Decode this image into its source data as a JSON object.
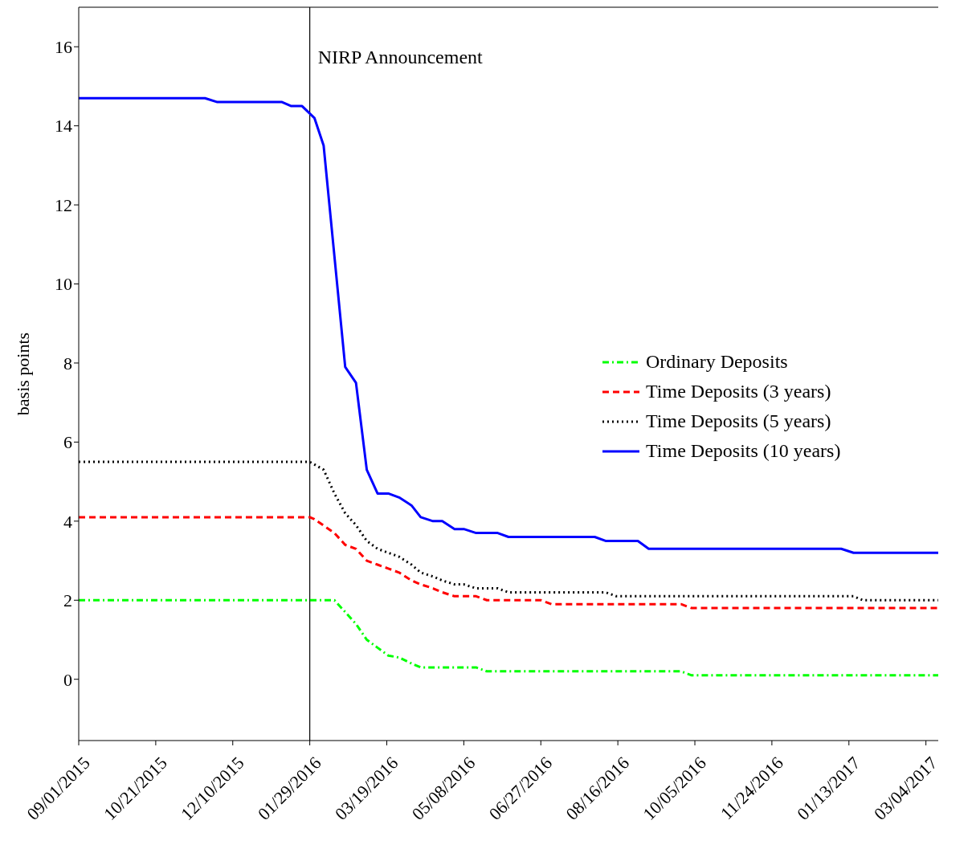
{
  "chart_data": {
    "type": "line",
    "ylabel": "basis points",
    "ylim": [
      -1.55,
      17
    ],
    "yticks": [
      0,
      2,
      4,
      6,
      8,
      10,
      12,
      14,
      16
    ],
    "xlim": [
      "2015-09-01",
      "2017-03-12"
    ],
    "xticks": [
      {
        "value": "2015-09-01",
        "label": "09/01/2015"
      },
      {
        "value": "2015-10-21",
        "label": "10/21/2015"
      },
      {
        "value": "2015-12-10",
        "label": "12/10/2015"
      },
      {
        "value": "2016-01-29",
        "label": "01/29/2016"
      },
      {
        "value": "2016-03-19",
        "label": "03/19/2016"
      },
      {
        "value": "2016-05-08",
        "label": "05/08/2016"
      },
      {
        "value": "2016-06-27",
        "label": "06/27/2016"
      },
      {
        "value": "2016-08-16",
        "label": "08/16/2016"
      },
      {
        "value": "2016-10-05",
        "label": "10/05/2016"
      },
      {
        "value": "2016-11-24",
        "label": "11/24/2016"
      },
      {
        "value": "2017-01-13",
        "label": "01/13/2017"
      },
      {
        "value": "2017-03-04",
        "label": "03/04/2017"
      }
    ],
    "legend": "right",
    "marker": "none",
    "ref_lines": [
      {
        "axis": "x",
        "value": "2016-01-29",
        "label": "NIRP Announcement",
        "color": "#000000"
      }
    ],
    "series": [
      {
        "name": "Ordinary Deposits",
        "color": "#00ff00",
        "line_style": "dashdot",
        "x": [
          "2015-09-01",
          "2016-02-14",
          "2016-02-21",
          "2016-02-28",
          "2016-03-06",
          "2016-03-13",
          "2016-03-20",
          "2016-03-27",
          "2016-04-04",
          "2016-04-10",
          "2016-05-16",
          "2016-05-23",
          "2016-09-26",
          "2016-10-03",
          "2017-03-12"
        ],
        "values": [
          2.0,
          2.0,
          1.7,
          1.4,
          1.0,
          0.8,
          0.6,
          0.55,
          0.4,
          0.3,
          0.3,
          0.2,
          0.2,
          0.1,
          0.1
        ]
      },
      {
        "name": "Time Deposits (3 years)",
        "color": "#ff0000",
        "line_style": "dashed",
        "x": [
          "2015-09-01",
          "2016-01-29",
          "2016-02-01",
          "2016-02-14",
          "2016-02-21",
          "2016-02-28",
          "2016-03-06",
          "2016-03-13",
          "2016-03-20",
          "2016-03-27",
          "2016-04-04",
          "2016-04-10",
          "2016-04-18",
          "2016-04-24",
          "2016-05-02",
          "2016-05-16",
          "2016-05-23",
          "2016-06-27",
          "2016-07-04",
          "2016-09-26",
          "2016-10-03",
          "2017-03-12"
        ],
        "values": [
          4.1,
          4.1,
          4.05,
          3.7,
          3.4,
          3.3,
          3.0,
          2.9,
          2.8,
          2.7,
          2.5,
          2.4,
          2.3,
          2.2,
          2.1,
          2.1,
          2.0,
          2.0,
          1.9,
          1.9,
          1.8,
          1.8
        ]
      },
      {
        "name": "Time Deposits (5 years)",
        "color": "#000000",
        "line_style": "dotted",
        "x": [
          "2015-09-01",
          "2016-01-29",
          "2016-02-07",
          "2016-02-14",
          "2016-02-21",
          "2016-02-28",
          "2016-03-06",
          "2016-03-13",
          "2016-03-20",
          "2016-03-27",
          "2016-04-04",
          "2016-04-10",
          "2016-04-18",
          "2016-04-24",
          "2016-05-02",
          "2016-05-08",
          "2016-05-16",
          "2016-05-30",
          "2016-06-06",
          "2016-08-08",
          "2016-08-15",
          "2017-01-16",
          "2017-01-22",
          "2017-03-12"
        ],
        "values": [
          5.5,
          5.5,
          5.3,
          4.7,
          4.2,
          3.9,
          3.5,
          3.3,
          3.2,
          3.1,
          2.9,
          2.7,
          2.6,
          2.5,
          2.4,
          2.4,
          2.3,
          2.3,
          2.2,
          2.2,
          2.1,
          2.1,
          2.0,
          2.0
        ]
      },
      {
        "name": "Time Deposits (10 years)",
        "color": "#0000ff",
        "line_style": "solid",
        "x": [
          "2015-09-01",
          "2015-11-22",
          "2015-11-30",
          "2016-01-11",
          "2016-01-17",
          "2016-01-24",
          "2016-02-01",
          "2016-02-07",
          "2016-02-21",
          "2016-02-28",
          "2016-03-06",
          "2016-03-13",
          "2016-03-20",
          "2016-03-27",
          "2016-04-04",
          "2016-04-10",
          "2016-04-18",
          "2016-04-24",
          "2016-05-02",
          "2016-05-08",
          "2016-05-16",
          "2016-05-30",
          "2016-06-06",
          "2016-08-01",
          "2016-08-08",
          "2016-08-29",
          "2016-09-05",
          "2017-01-08",
          "2017-01-16",
          "2017-03-12"
        ],
        "values": [
          14.7,
          14.7,
          14.6,
          14.6,
          14.5,
          14.5,
          14.2,
          13.5,
          7.9,
          7.5,
          5.3,
          4.7,
          4.7,
          4.6,
          4.4,
          4.1,
          4.0,
          4.0,
          3.8,
          3.8,
          3.7,
          3.7,
          3.6,
          3.6,
          3.5,
          3.5,
          3.3,
          3.3,
          3.2,
          3.2
        ]
      }
    ]
  }
}
